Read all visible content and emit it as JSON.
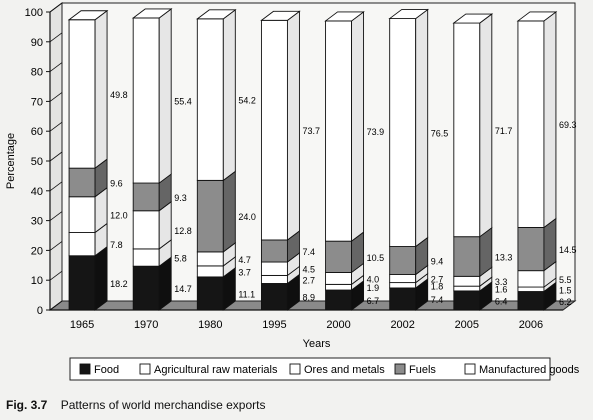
{
  "chart_data": {
    "type": "bar",
    "stacked": true,
    "ylabel": "Percentage",
    "xlabel": "Years",
    "ylim": [
      0,
      100
    ],
    "yticks": [
      0,
      10,
      20,
      30,
      40,
      50,
      60,
      70,
      80,
      90,
      100
    ],
    "grid": false,
    "legend_position": "bottom",
    "categories": [
      "1965",
      "1970",
      "1980",
      "1995",
      "2000",
      "2002",
      "2005",
      "2006"
    ],
    "series": [
      {
        "name": "Food",
        "color": "#151515",
        "pattern": "solid-black",
        "values": [
          18.2,
          14.7,
          11.1,
          8.9,
          6.7,
          7.4,
          6.4,
          6.2
        ],
        "labels": [
          "18.2",
          "14.7",
          "11.1",
          "8.9",
          "6.7",
          "7.4",
          "6.4",
          "6.2"
        ]
      },
      {
        "name": "Agricultural raw materials",
        "color": "#ffffff",
        "pattern": "white",
        "values": [
          7.8,
          5.8,
          3.7,
          2.7,
          1.9,
          1.8,
          1.6,
          1.5
        ],
        "labels": [
          "7.8",
          "5.8",
          "3.7",
          "2.7",
          "1.9",
          "1.8",
          "1.6",
          "1.5"
        ]
      },
      {
        "name": "Ores and metals",
        "color": "#ffffff",
        "pattern": "white",
        "values": [
          12.0,
          12.8,
          4.7,
          4.5,
          4.0,
          2.7,
          3.3,
          5.5
        ],
        "labels": [
          "12.0",
          "12.8",
          "4.7",
          "4.5",
          "4.0",
          "2.7",
          "3.3",
          "5.5"
        ]
      },
      {
        "name": "Fuels",
        "color": "#8c8c8c",
        "pattern": "grey",
        "values": [
          9.6,
          9.3,
          24.0,
          7.4,
          10.5,
          9.4,
          13.3,
          14.5
        ],
        "labels": [
          "9.6",
          "9.3",
          "24.0",
          "7.4",
          "10.5",
          "9.4",
          "13.3",
          "14.5"
        ]
      },
      {
        "name": "Manufactured goods",
        "color": "#ffffff",
        "pattern": "white",
        "values": [
          49.8,
          55.4,
          54.2,
          73.7,
          73.9,
          76.5,
          71.7,
          69.3
        ],
        "labels": [
          "49.8",
          "55.4",
          "54.2",
          "73.7",
          "73.9",
          "76.5",
          "71.7",
          "69.3"
        ]
      }
    ]
  },
  "caption": {
    "figure_number": "Fig. 3.7",
    "text": "Patterns of world merchandise exports"
  }
}
